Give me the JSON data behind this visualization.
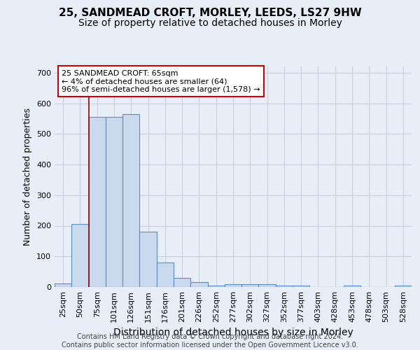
{
  "title1": "25, SANDMEAD CROFT, MORLEY, LEEDS, LS27 9HW",
  "title2": "Size of property relative to detached houses in Morley",
  "xlabel": "Distribution of detached houses by size in Morley",
  "ylabel": "Number of detached properties",
  "categories": [
    "25sqm",
    "50sqm",
    "75sqm",
    "101sqm",
    "126sqm",
    "151sqm",
    "176sqm",
    "201sqm",
    "226sqm",
    "252sqm",
    "277sqm",
    "302sqm",
    "327sqm",
    "352sqm",
    "377sqm",
    "403sqm",
    "428sqm",
    "453sqm",
    "478sqm",
    "503sqm",
    "528sqm"
  ],
  "values": [
    12,
    205,
    555,
    555,
    565,
    180,
    80,
    30,
    15,
    5,
    10,
    10,
    10,
    5,
    5,
    0,
    0,
    5,
    0,
    0,
    5
  ],
  "bar_color": "#c9d9ee",
  "bar_edge_color": "#5b8dc8",
  "background_color": "#e8eef8",
  "grid_color": "#c8d0e0",
  "vline_x": 1.5,
  "vline_color": "#990000",
  "annotation_text": "25 SANDMEAD CROFT: 65sqm\n← 4% of detached houses are smaller (64)\n96% of semi-detached houses are larger (1,578) →",
  "annotation_box_color": "#ffffff",
  "annotation_box_edge": "#cc0000",
  "ylim": [
    0,
    720
  ],
  "yticks": [
    0,
    100,
    200,
    300,
    400,
    500,
    600,
    700
  ],
  "footer": "Contains HM Land Registry data © Crown copyright and database right 2024.\nContains public sector information licensed under the Open Government Licence v3.0.",
  "title1_fontsize": 11,
  "title2_fontsize": 10,
  "xlabel_fontsize": 10,
  "ylabel_fontsize": 9,
  "tick_fontsize": 8,
  "footer_fontsize": 7
}
